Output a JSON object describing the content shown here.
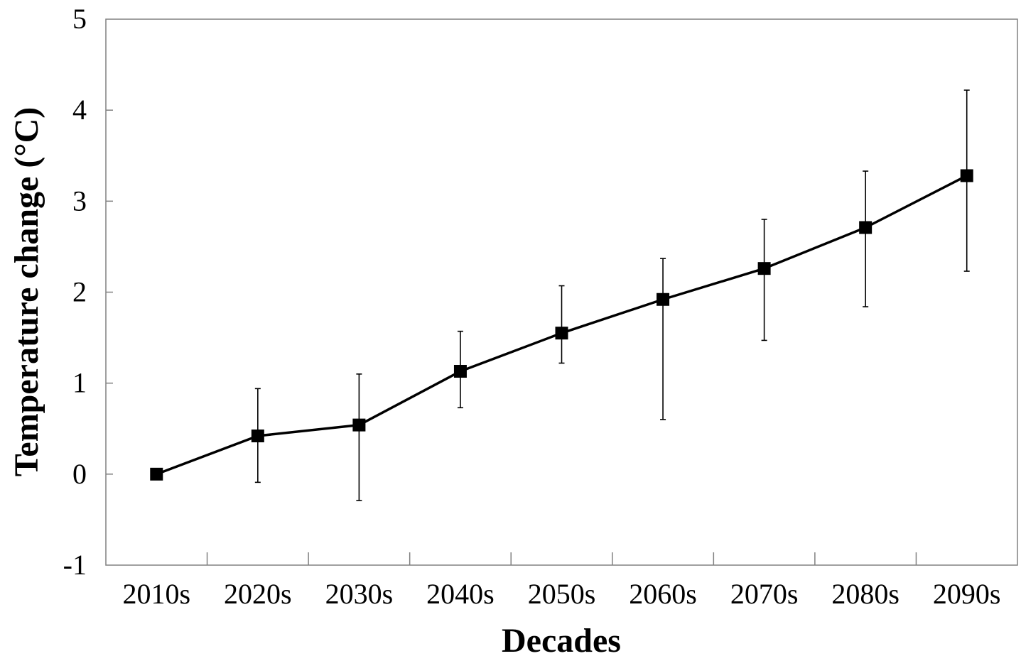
{
  "chart_data": {
    "type": "line",
    "title": "",
    "xlabel": "Decades",
    "ylabel": "Temperature change (°C)",
    "categories": [
      "2010s",
      "2020s",
      "2030s",
      "2040s",
      "2050s",
      "2060s",
      "2070s",
      "2080s",
      "2090s"
    ],
    "ylim": [
      -1,
      5
    ],
    "yticks": [
      -1,
      0,
      1,
      2,
      3,
      4,
      5
    ],
    "ytick_labels": [
      "-1",
      "0",
      "1",
      "2",
      "3",
      "4",
      "5"
    ],
    "grid": false,
    "legend": "none",
    "series": [
      {
        "values": [
          0.0,
          0.42,
          0.54,
          1.13,
          1.55,
          1.92,
          2.26,
          2.71,
          3.28
        ],
        "error_low": [
          0.0,
          -0.09,
          -0.29,
          0.73,
          1.22,
          0.6,
          1.47,
          1.84,
          2.23
        ],
        "error_high": [
          0.0,
          0.94,
          1.1,
          1.57,
          2.07,
          2.37,
          2.8,
          3.33,
          4.22
        ],
        "color": "#000000",
        "marker": "square"
      }
    ]
  }
}
